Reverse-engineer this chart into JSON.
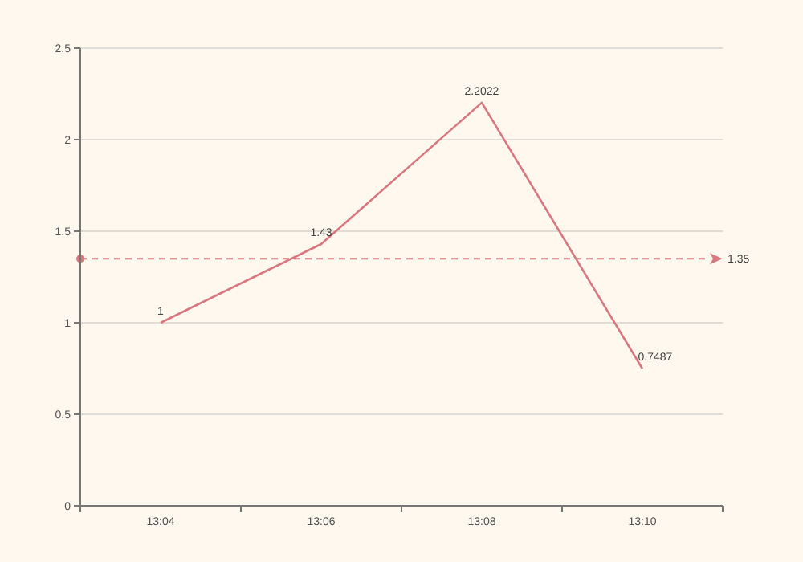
{
  "chart_data": {
    "type": "line",
    "categories": [
      "13:04",
      "13:06",
      "13:08",
      "13:10"
    ],
    "series": [
      {
        "color": "#d9777f",
        "values": [
          1,
          1.43,
          2.2022,
          0.7487
        ]
      }
    ],
    "ylim": [
      0,
      2.5
    ],
    "yticks": [
      0,
      0.5,
      1,
      1.5,
      2,
      2.5
    ],
    "grid": "y",
    "data_labels": true,
    "marker": "none",
    "line_style": "solid",
    "ref_lines": [
      {
        "axis": "y",
        "value": 1.35,
        "label": "1.35",
        "color": "#d9777f",
        "line_style": "dashed"
      }
    ]
  }
}
